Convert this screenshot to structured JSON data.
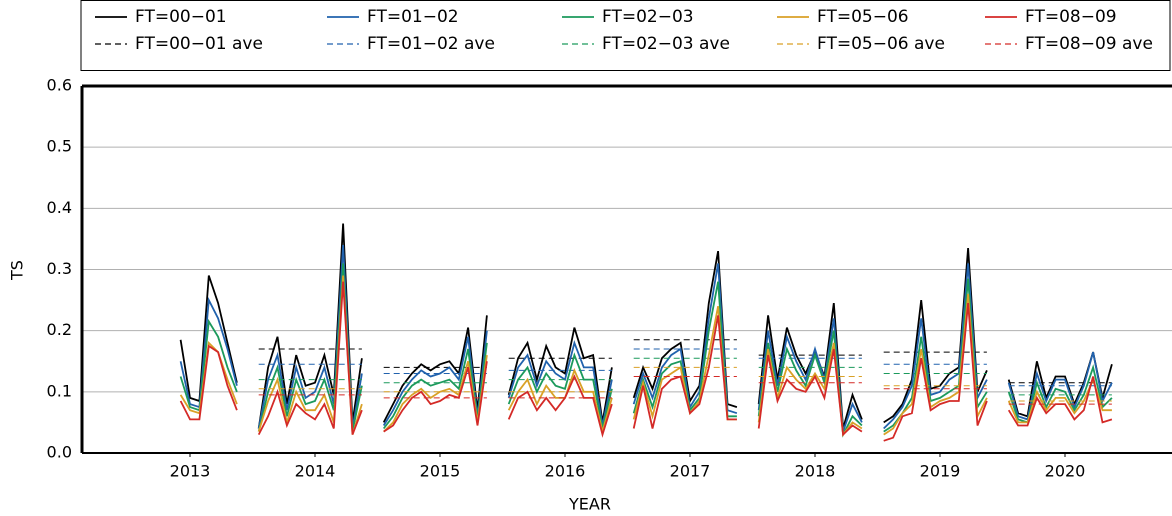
{
  "chart_data": {
    "type": "line",
    "xlabel": "YEAR",
    "ylabel": "TS",
    "xlim": [
      2012.636,
      2021.356
    ],
    "xticks": [
      {
        "value": 2013.5,
        "label": "2013"
      },
      {
        "value": 2014.5,
        "label": "2014"
      },
      {
        "value": 2015.5,
        "label": "2015"
      },
      {
        "value": 2016.5,
        "label": "2016"
      },
      {
        "value": 2017.5,
        "label": "2017"
      },
      {
        "value": 2018.5,
        "label": "2018"
      },
      {
        "value": 2019.5,
        "label": "2019"
      },
      {
        "value": 2020.5,
        "label": "2020"
      }
    ],
    "ylim": [
      0,
      0.6
    ],
    "yticks": [
      {
        "value": 0,
        "label": "0.0"
      },
      0.1,
      0.2,
      0.3,
      0.4,
      0.5,
      0.6
    ],
    "grid": true,
    "x": [
      2013.425,
      2013.5,
      2013.575,
      2013.65,
      2013.725,
      2013.8,
      2013.875,
      2013.96,
      2014.05,
      2014.125,
      2014.2,
      2014.275,
      2014.35,
      2014.425,
      2014.5,
      2014.575,
      2014.65,
      2014.725,
      2014.8,
      2014.875,
      2014.96,
      2015.05,
      2015.125,
      2015.2,
      2015.275,
      2015.35,
      2015.425,
      2015.5,
      2015.575,
      2015.65,
      2015.725,
      2015.8,
      2015.875,
      2015.96,
      2016.05,
      2016.125,
      2016.2,
      2016.275,
      2016.35,
      2016.425,
      2016.5,
      2016.575,
      2016.65,
      2016.725,
      2016.8,
      2016.875,
      2016.96,
      2017.05,
      2017.125,
      2017.2,
      2017.275,
      2017.35,
      2017.425,
      2017.5,
      2017.575,
      2017.65,
      2017.725,
      2017.8,
      2017.875,
      2017.96,
      2018.05,
      2018.125,
      2018.2,
      2018.275,
      2018.35,
      2018.425,
      2018.5,
      2018.575,
      2018.65,
      2018.725,
      2018.8,
      2018.875,
      2018.96,
      2019.05,
      2019.125,
      2019.2,
      2019.275,
      2019.35,
      2019.425,
      2019.5,
      2019.575,
      2019.65,
      2019.725,
      2019.8,
      2019.875,
      2019.96,
      2020.05,
      2020.125,
      2020.2,
      2020.275,
      2020.35,
      2020.425,
      2020.5,
      2020.575,
      2020.65,
      2020.725,
      2020.8,
      2020.875
    ],
    "series": [
      {
        "name": "FT=00−01",
        "color": "#000000",
        "linestyle": "solid",
        "values": [
          0.185,
          0.09,
          0.085,
          0.29,
          0.245,
          0.18,
          0.115,
          null,
          0.04,
          0.14,
          0.19,
          0.08,
          0.16,
          0.11,
          0.115,
          0.16,
          0.095,
          0.375,
          0.05,
          0.155,
          null,
          0.05,
          0.08,
          0.11,
          0.13,
          0.145,
          0.135,
          0.145,
          0.15,
          0.13,
          0.205,
          0.07,
          0.225,
          null,
          0.095,
          0.155,
          0.18,
          0.12,
          0.175,
          0.14,
          0.13,
          0.205,
          0.155,
          0.16,
          0.05,
          0.14,
          null,
          0.09,
          0.14,
          0.105,
          0.155,
          0.17,
          0.18,
          0.085,
          0.11,
          0.245,
          0.33,
          0.08,
          0.075,
          null,
          0.08,
          0.225,
          0.12,
          0.205,
          0.16,
          0.13,
          0.165,
          0.125,
          0.245,
          0.04,
          0.095,
          0.055,
          null,
          0.05,
          0.06,
          0.08,
          0.12,
          0.25,
          0.105,
          0.11,
          0.13,
          0.14,
          0.335,
          0.1,
          0.135,
          null,
          0.12,
          0.065,
          0.06,
          0.15,
          0.09,
          0.125,
          0.125,
          0.08,
          0.115,
          0.165,
          0.09,
          0.145
        ]
      },
      {
        "name": "FT=00−01 ave",
        "color": "#000000",
        "linestyle": "dashed",
        "values": [
          null,
          null,
          null,
          null,
          null,
          null,
          null,
          null,
          0.17,
          0.17,
          0.17,
          0.17,
          0.17,
          0.17,
          0.17,
          0.17,
          0.17,
          0.17,
          0.17,
          0.17,
          null,
          0.14,
          0.14,
          0.14,
          0.14,
          0.14,
          0.14,
          0.14,
          0.14,
          0.14,
          0.14,
          0.14,
          0.14,
          null,
          0.155,
          0.155,
          0.155,
          0.155,
          0.155,
          0.155,
          0.155,
          0.155,
          0.155,
          0.155,
          0.155,
          0.155,
          null,
          0.185,
          0.185,
          0.185,
          0.185,
          0.185,
          0.185,
          0.185,
          0.185,
          0.185,
          0.185,
          0.185,
          0.185,
          null,
          0.16,
          0.16,
          0.16,
          0.16,
          0.16,
          0.16,
          0.16,
          0.16,
          0.16,
          0.16,
          0.16,
          0.16,
          null,
          0.165,
          0.165,
          0.165,
          0.165,
          0.165,
          0.165,
          0.165,
          0.165,
          0.165,
          0.165,
          0.165,
          0.165,
          null,
          0.115,
          0.115,
          0.115,
          0.115,
          0.115,
          0.115,
          0.115,
          0.115,
          0.115,
          0.115,
          0.115,
          0.115
        ]
      },
      {
        "name": "FT=01−02",
        "color": "#2162ad",
        "linestyle": "solid",
        "values": [
          0.15,
          0.08,
          0.075,
          0.25,
          0.22,
          0.17,
          0.11,
          null,
          0.04,
          0.12,
          0.16,
          0.07,
          0.14,
          0.09,
          0.1,
          0.14,
          0.08,
          0.34,
          0.04,
          0.13,
          null,
          0.045,
          0.07,
          0.1,
          0.12,
          0.135,
          0.125,
          0.13,
          0.14,
          0.12,
          0.19,
          0.06,
          0.2,
          null,
          0.09,
          0.14,
          0.16,
          0.11,
          0.15,
          0.13,
          0.12,
          0.18,
          0.14,
          0.14,
          0.045,
          0.12,
          null,
          0.08,
          0.13,
          0.09,
          0.14,
          0.16,
          0.17,
          0.075,
          0.1,
          0.22,
          0.31,
          0.07,
          0.065,
          null,
          0.07,
          0.2,
          0.11,
          0.19,
          0.15,
          0.12,
          0.17,
          0.12,
          0.22,
          0.035,
          0.08,
          0.05,
          null,
          0.04,
          0.055,
          0.075,
          0.11,
          0.22,
          0.095,
          0.1,
          0.12,
          0.13,
          0.31,
          0.09,
          0.12,
          null,
          0.115,
          0.06,
          0.055,
          0.13,
          0.085,
          0.12,
          0.12,
          0.075,
          0.11,
          0.165,
          0.085,
          0.115
        ]
      },
      {
        "name": "FT=01−02 ave",
        "color": "#2162ad",
        "linestyle": "dashed",
        "values": [
          null,
          null,
          null,
          null,
          null,
          null,
          null,
          null,
          0.145,
          0.145,
          0.145,
          0.145,
          0.145,
          0.145,
          0.145,
          0.145,
          0.145,
          0.145,
          0.145,
          0.145,
          null,
          0.13,
          0.13,
          0.13,
          0.13,
          0.13,
          0.13,
          0.13,
          0.13,
          0.13,
          0.13,
          0.13,
          0.13,
          null,
          0.135,
          0.135,
          0.135,
          0.135,
          0.135,
          0.135,
          0.135,
          0.135,
          0.135,
          0.135,
          0.135,
          0.135,
          null,
          0.17,
          0.17,
          0.17,
          0.17,
          0.17,
          0.17,
          0.17,
          0.17,
          0.17,
          0.17,
          0.17,
          0.17,
          null,
          0.155,
          0.155,
          0.155,
          0.155,
          0.155,
          0.155,
          0.155,
          0.155,
          0.155,
          0.155,
          0.155,
          0.155,
          null,
          0.145,
          0.145,
          0.145,
          0.145,
          0.145,
          0.145,
          0.145,
          0.145,
          0.145,
          0.145,
          0.145,
          0.145,
          null,
          0.11,
          0.11,
          0.11,
          0.11,
          0.11,
          0.11,
          0.11,
          0.11,
          0.11,
          0.11,
          0.11,
          0.11
        ]
      },
      {
        "name": "FT=02−03",
        "color": "#1c9a5c",
        "linestyle": "solid",
        "values": [
          0.125,
          0.075,
          0.07,
          0.215,
          0.19,
          0.14,
          0.1,
          null,
          0.035,
          0.1,
          0.14,
          0.06,
          0.12,
          0.08,
          0.085,
          0.12,
          0.07,
          0.31,
          0.035,
          0.11,
          null,
          0.04,
          0.06,
          0.09,
          0.11,
          0.12,
          0.11,
          0.115,
          0.12,
          0.105,
          0.17,
          0.055,
          0.18,
          null,
          0.08,
          0.12,
          0.14,
          0.1,
          0.13,
          0.11,
          0.105,
          0.16,
          0.12,
          0.12,
          0.04,
          0.105,
          null,
          0.065,
          0.12,
          0.075,
          0.13,
          0.145,
          0.15,
          0.07,
          0.09,
          0.2,
          0.28,
          0.06,
          0.06,
          null,
          0.06,
          0.18,
          0.1,
          0.17,
          0.135,
          0.11,
          0.16,
          0.115,
          0.2,
          0.03,
          0.06,
          0.045,
          null,
          0.035,
          0.045,
          0.065,
          0.09,
          0.19,
          0.085,
          0.09,
          0.1,
          0.11,
          0.285,
          0.075,
          0.1,
          null,
          0.1,
          0.055,
          0.05,
          0.115,
          0.075,
          0.105,
          0.1,
          0.07,
          0.095,
          0.14,
          0.075,
          0.09
        ]
      },
      {
        "name": "FT=02−03 ave",
        "color": "#1c9a5c",
        "linestyle": "dashed",
        "values": [
          null,
          null,
          null,
          null,
          null,
          null,
          null,
          null,
          0.12,
          0.12,
          0.12,
          0.12,
          0.12,
          0.12,
          0.12,
          0.12,
          0.12,
          0.12,
          0.12,
          0.12,
          null,
          0.115,
          0.115,
          0.115,
          0.115,
          0.115,
          0.115,
          0.115,
          0.115,
          0.115,
          0.115,
          0.115,
          0.115,
          null,
          0.12,
          0.12,
          0.12,
          0.12,
          0.12,
          0.12,
          0.12,
          0.12,
          0.12,
          0.12,
          0.12,
          0.12,
          null,
          0.155,
          0.155,
          0.155,
          0.155,
          0.155,
          0.155,
          0.155,
          0.155,
          0.155,
          0.155,
          0.155,
          0.155,
          null,
          0.14,
          0.14,
          0.14,
          0.14,
          0.14,
          0.14,
          0.14,
          0.14,
          0.14,
          0.14,
          0.14,
          0.14,
          null,
          0.13,
          0.13,
          0.13,
          0.13,
          0.13,
          0.13,
          0.13,
          0.13,
          0.13,
          0.13,
          0.13,
          0.13,
          null,
          0.095,
          0.095,
          0.095,
          0.095,
          0.095,
          0.095,
          0.095,
          0.095,
          0.095,
          0.095,
          0.095,
          0.095
        ]
      },
      {
        "name": "FT=05−06",
        "color": "#d9a127",
        "linestyle": "solid",
        "values": [
          0.095,
          0.07,
          0.065,
          0.18,
          0.165,
          0.12,
          0.08,
          null,
          0.035,
          0.085,
          0.12,
          0.05,
          0.1,
          0.07,
          0.07,
          0.095,
          0.05,
          0.29,
          0.03,
          0.08,
          null,
          0.035,
          0.05,
          0.08,
          0.095,
          0.105,
          0.09,
          0.1,
          0.105,
          0.095,
          0.15,
          0.05,
          0.16,
          null,
          0.07,
          0.1,
          0.12,
          0.08,
          0.11,
          0.09,
          0.09,
          0.135,
          0.1,
          0.1,
          0.035,
          0.09,
          null,
          0.055,
          0.115,
          0.06,
          0.12,
          0.13,
          0.14,
          0.065,
          0.085,
          0.16,
          0.24,
          0.055,
          0.055,
          null,
          0.05,
          0.17,
          0.09,
          0.14,
          0.12,
          0.105,
          0.13,
          0.105,
          0.18,
          0.03,
          0.05,
          0.04,
          null,
          0.03,
          0.04,
          0.065,
          0.08,
          0.17,
          0.075,
          0.085,
          0.09,
          0.1,
          0.26,
          0.06,
          0.09,
          null,
          0.085,
          0.05,
          0.05,
          0.1,
          0.07,
          0.09,
          0.09,
          0.065,
          0.085,
          0.12,
          0.07,
          0.07
        ]
      },
      {
        "name": "FT=05−06 ave",
        "color": "#d9a127",
        "linestyle": "dashed",
        "values": [
          null,
          null,
          null,
          null,
          null,
          null,
          null,
          null,
          0.105,
          0.105,
          0.105,
          0.105,
          0.105,
          0.105,
          0.105,
          0.105,
          0.105,
          0.105,
          0.105,
          0.105,
          null,
          0.1,
          0.1,
          0.1,
          0.1,
          0.1,
          0.1,
          0.1,
          0.1,
          0.1,
          0.1,
          0.1,
          0.1,
          null,
          0.1,
          0.1,
          0.1,
          0.1,
          0.1,
          0.1,
          0.1,
          0.1,
          0.1,
          0.1,
          0.1,
          0.1,
          null,
          0.14,
          0.14,
          0.14,
          0.14,
          0.14,
          0.14,
          0.14,
          0.14,
          0.14,
          0.14,
          0.14,
          0.14,
          null,
          0.125,
          0.125,
          0.125,
          0.125,
          0.125,
          0.125,
          0.125,
          0.125,
          0.125,
          0.125,
          0.125,
          0.125,
          null,
          0.11,
          0.11,
          0.11,
          0.11,
          0.11,
          0.11,
          0.11,
          0.11,
          0.11,
          0.11,
          0.11,
          0.11,
          null,
          0.085,
          0.085,
          0.085,
          0.085,
          0.085,
          0.085,
          0.085,
          0.085,
          0.085,
          0.085,
          0.085,
          0.085
        ]
      },
      {
        "name": "FT=08−09",
        "color": "#d42a27",
        "linestyle": "solid",
        "values": [
          0.085,
          0.055,
          0.055,
          0.175,
          0.165,
          0.11,
          0.07,
          null,
          0.03,
          0.06,
          0.1,
          0.045,
          0.08,
          0.065,
          0.055,
          0.08,
          0.04,
          0.28,
          0.03,
          0.07,
          null,
          0.035,
          0.045,
          0.07,
          0.09,
          0.1,
          0.08,
          0.085,
          0.095,
          0.09,
          0.14,
          0.045,
          0.15,
          null,
          0.055,
          0.09,
          0.1,
          0.07,
          0.09,
          0.07,
          0.09,
          0.125,
          0.09,
          0.09,
          0.03,
          0.08,
          null,
          0.04,
          0.11,
          0.04,
          0.105,
          0.12,
          0.125,
          0.065,
          0.08,
          0.14,
          0.225,
          0.055,
          0.055,
          null,
          0.04,
          0.16,
          0.085,
          0.12,
          0.105,
          0.1,
          0.125,
          0.09,
          0.17,
          0.03,
          0.045,
          0.035,
          null,
          0.02,
          0.025,
          0.06,
          0.065,
          0.155,
          0.07,
          0.08,
          0.085,
          0.085,
          0.245,
          0.045,
          0.085,
          null,
          0.07,
          0.045,
          0.045,
          0.09,
          0.065,
          0.08,
          0.08,
          0.055,
          0.07,
          0.125,
          0.05,
          0.055
        ]
      },
      {
        "name": "FT=08−09 ave",
        "color": "#d42a27",
        "linestyle": "dashed",
        "values": [
          null,
          null,
          null,
          null,
          null,
          null,
          null,
          null,
          0.095,
          0.095,
          0.095,
          0.095,
          0.095,
          0.095,
          0.095,
          0.095,
          0.095,
          0.095,
          0.095,
          0.095,
          null,
          0.09,
          0.09,
          0.09,
          0.09,
          0.09,
          0.09,
          0.09,
          0.09,
          0.09,
          0.09,
          0.09,
          0.09,
          null,
          0.09,
          0.09,
          0.09,
          0.09,
          0.09,
          0.09,
          0.09,
          0.09,
          0.09,
          0.09,
          0.09,
          0.09,
          null,
          0.125,
          0.125,
          0.125,
          0.125,
          0.125,
          0.125,
          0.125,
          0.125,
          0.125,
          0.125,
          0.125,
          0.125,
          null,
          0.115,
          0.115,
          0.115,
          0.115,
          0.115,
          0.115,
          0.115,
          0.115,
          0.115,
          0.115,
          0.115,
          0.115,
          null,
          0.105,
          0.105,
          0.105,
          0.105,
          0.105,
          0.105,
          0.105,
          0.105,
          0.105,
          0.105,
          0.105,
          0.105,
          null,
          0.08,
          0.08,
          0.08,
          0.08,
          0.08,
          0.08,
          0.08,
          0.08,
          0.08,
          0.08,
          0.08,
          0.08
        ]
      }
    ]
  }
}
